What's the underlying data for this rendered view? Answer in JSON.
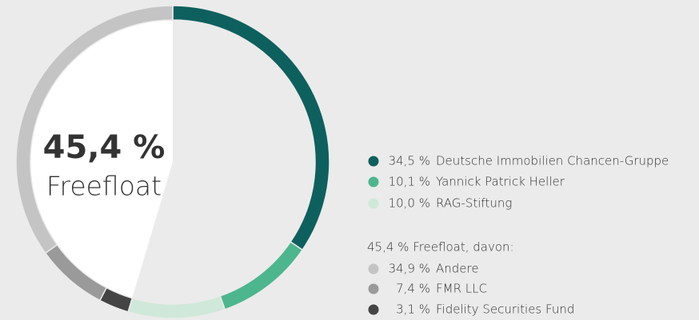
{
  "chart_data": {
    "type": "donut",
    "freefloat": {
      "value": 45.4,
      "label": "45,4 %"
    },
    "freefloat_name": "Freefloat",
    "freefloat_heading": "45,4 % Freefloat, davon:",
    "shareholders": [
      {
        "name": "Deutsche Immobilien Chancen-Gruppe",
        "color": "#0e605e",
        "value": 34.5,
        "value_label": "34,5 %"
      },
      {
        "name": "Yannick Patrick Heller",
        "color": "#4db68e",
        "value": 10.1,
        "value_label": "10,1 %"
      },
      {
        "name": "RAG-Stiftung",
        "color": "#cfe8d9",
        "value": 10.0,
        "value_label": "10,0 %"
      }
    ],
    "freefloat_breakdown": [
      {
        "name": "Andere",
        "color": "#c4c4c4",
        "value": 34.9,
        "value_label": "34,9 %"
      },
      {
        "name": "FMR LLC",
        "color": "#9a9a9a",
        "value": 7.4,
        "value_label": "7,4 %"
      },
      {
        "name": "Fidelity Securities Fund",
        "color": "#444444",
        "value": 3.1,
        "value_label": "3,1 %"
      }
    ]
  }
}
